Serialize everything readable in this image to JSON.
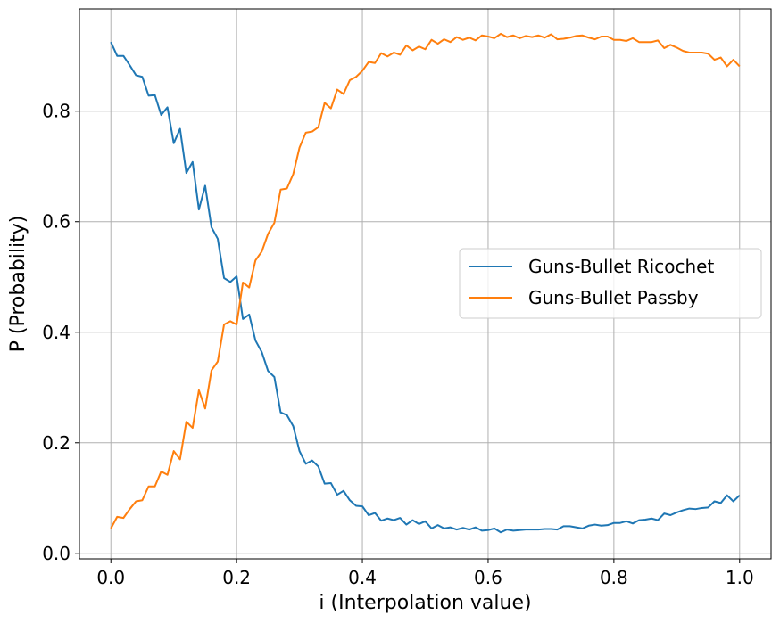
{
  "chart_data": {
    "type": "line",
    "title": "",
    "xlabel": "i (Interpolation value)",
    "ylabel": "P (Probability)",
    "xlim": [
      -0.05,
      1.05
    ],
    "ylim": [
      -0.01,
      0.985
    ],
    "x_ticks": [
      0.0,
      0.2,
      0.4,
      0.6,
      0.8,
      1.0
    ],
    "x_tick_labels": [
      "0.0",
      "0.2",
      "0.4",
      "0.6",
      "0.8",
      "1.0"
    ],
    "y_ticks": [
      0.0,
      0.2,
      0.4,
      0.6,
      0.8
    ],
    "y_tick_labels": [
      "0.0",
      "0.2",
      "0.4",
      "0.6",
      "0.8"
    ],
    "grid": true,
    "legend_position": "center-right",
    "x": [
      0.0,
      0.01,
      0.02,
      0.03,
      0.04,
      0.05,
      0.06,
      0.07,
      0.08,
      0.09,
      0.1,
      0.11,
      0.12,
      0.13,
      0.14,
      0.15,
      0.16,
      0.17,
      0.18,
      0.19,
      0.2,
      0.21,
      0.22,
      0.23,
      0.24,
      0.25,
      0.26,
      0.27,
      0.28,
      0.29,
      0.3,
      0.31,
      0.32,
      0.33,
      0.34,
      0.35,
      0.36,
      0.37,
      0.38,
      0.39,
      0.4,
      0.41,
      0.42,
      0.43,
      0.44,
      0.45,
      0.46,
      0.47,
      0.48,
      0.49,
      0.5,
      0.51,
      0.52,
      0.53,
      0.54,
      0.55,
      0.56,
      0.57,
      0.58,
      0.59,
      0.6,
      0.61,
      0.62,
      0.63,
      0.64,
      0.65,
      0.66,
      0.67,
      0.68,
      0.69,
      0.7,
      0.71,
      0.72,
      0.73,
      0.74,
      0.75,
      0.76,
      0.77,
      0.78,
      0.79,
      0.8,
      0.81,
      0.82,
      0.83,
      0.84,
      0.85,
      0.86,
      0.87,
      0.88,
      0.89,
      0.9,
      0.91,
      0.92,
      0.93,
      0.94,
      0.95,
      0.96,
      0.97,
      0.98,
      0.99,
      1.0
    ],
    "series": [
      {
        "name": "Guns-Bullet Ricochet",
        "color": "#1f77b4",
        "values": [
          0.925,
          0.9,
          0.9,
          0.883,
          0.865,
          0.862,
          0.828,
          0.829,
          0.793,
          0.807,
          0.742,
          0.768,
          0.688,
          0.708,
          0.622,
          0.665,
          0.59,
          0.569,
          0.498,
          0.491,
          0.501,
          0.424,
          0.432,
          0.385,
          0.364,
          0.33,
          0.319,
          0.255,
          0.25,
          0.23,
          0.185,
          0.162,
          0.168,
          0.157,
          0.126,
          0.127,
          0.106,
          0.113,
          0.096,
          0.086,
          0.085,
          0.069,
          0.073,
          0.059,
          0.063,
          0.06,
          0.064,
          0.052,
          0.06,
          0.053,
          0.058,
          0.045,
          0.051,
          0.045,
          0.047,
          0.043,
          0.046,
          0.043,
          0.047,
          0.041,
          0.042,
          0.045,
          0.038,
          0.043,
          0.041,
          0.042,
          0.043,
          0.043,
          0.043,
          0.044,
          0.044,
          0.043,
          0.049,
          0.049,
          0.047,
          0.045,
          0.05,
          0.052,
          0.05,
          0.051,
          0.055,
          0.055,
          0.058,
          0.054,
          0.06,
          0.061,
          0.063,
          0.06,
          0.072,
          0.069,
          0.074,
          0.078,
          0.081,
          0.08,
          0.082,
          0.083,
          0.094,
          0.091,
          0.105,
          0.094,
          0.105
        ]
      },
      {
        "name": "Guns-Bullet Passby",
        "color": "#ff7f0e",
        "values": [
          0.045,
          0.066,
          0.064,
          0.08,
          0.094,
          0.096,
          0.121,
          0.121,
          0.148,
          0.142,
          0.185,
          0.17,
          0.238,
          0.227,
          0.295,
          0.262,
          0.331,
          0.347,
          0.414,
          0.42,
          0.414,
          0.49,
          0.481,
          0.53,
          0.546,
          0.578,
          0.598,
          0.658,
          0.66,
          0.686,
          0.734,
          0.761,
          0.763,
          0.771,
          0.815,
          0.805,
          0.839,
          0.831,
          0.856,
          0.862,
          0.873,
          0.889,
          0.887,
          0.905,
          0.899,
          0.906,
          0.902,
          0.919,
          0.91,
          0.917,
          0.912,
          0.929,
          0.922,
          0.93,
          0.925,
          0.934,
          0.929,
          0.933,
          0.928,
          0.937,
          0.935,
          0.932,
          0.94,
          0.934,
          0.937,
          0.932,
          0.936,
          0.934,
          0.937,
          0.933,
          0.939,
          0.93,
          0.931,
          0.933,
          0.936,
          0.937,
          0.933,
          0.93,
          0.935,
          0.935,
          0.929,
          0.929,
          0.927,
          0.932,
          0.925,
          0.925,
          0.925,
          0.928,
          0.914,
          0.92,
          0.915,
          0.909,
          0.906,
          0.906,
          0.906,
          0.904,
          0.893,
          0.897,
          0.881,
          0.893,
          0.881
        ]
      }
    ]
  }
}
